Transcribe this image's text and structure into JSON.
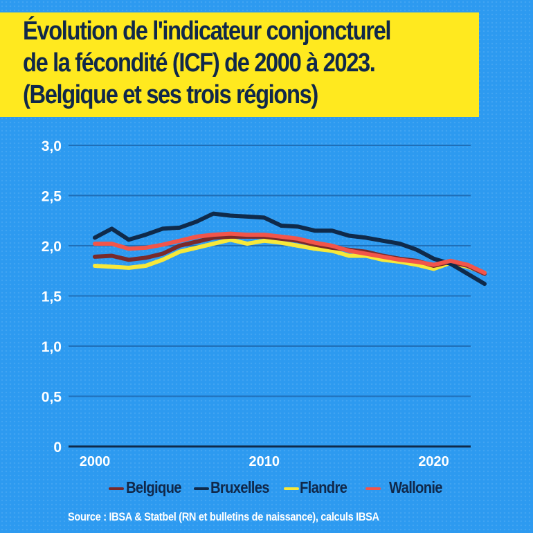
{
  "title": {
    "lines": [
      "Évolution de l'indicateur conjoncturel",
      "de la fécondité (ICF) de 2000 à 2023.",
      "(Belgique et ses trois régions)"
    ],
    "background_color": "#ffe91f",
    "text_color": "#10284a"
  },
  "source": "Source : IBSA & Statbel (RN et bulletins de naissance), calculs IBSA",
  "colors": {
    "background": "#2d9af0",
    "gridline": "#1f6fb8",
    "baseline": "#0f2a4a",
    "tick_text": "#ffffff"
  },
  "chart_data": {
    "type": "line",
    "title": "Évolution de l'indicateur conjoncturel de la fécondité (ICF) de 2000 à 2023. (Belgique et ses trois régions)",
    "xlabel": "",
    "ylabel": "",
    "x": [
      2000,
      2001,
      2002,
      2003,
      2004,
      2005,
      2006,
      2007,
      2008,
      2009,
      2010,
      2011,
      2012,
      2013,
      2014,
      2015,
      2016,
      2017,
      2018,
      2019,
      2020,
      2021,
      2022,
      2023
    ],
    "xlim": [
      2000,
      2023
    ],
    "ylim": [
      0,
      3.0
    ],
    "x_ticks": [
      2000,
      2010,
      2020
    ],
    "x_tick_labels": [
      "2000",
      "2010",
      "2020"
    ],
    "y_ticks": [
      0,
      0.5,
      1.0,
      1.5,
      2.0,
      2.5,
      3.0
    ],
    "y_tick_labels": [
      "0",
      "0,5",
      "1,0",
      "1,5",
      "2,0",
      "2,5",
      "3,0"
    ],
    "grid": "horizontal",
    "legend_position": "bottom",
    "series": [
      {
        "name": "Belgique",
        "color": "#7a2a2a",
        "values": [
          1.89,
          1.9,
          1.86,
          1.88,
          1.92,
          2.0,
          2.04,
          2.08,
          2.09,
          2.09,
          2.09,
          2.07,
          2.05,
          2.01,
          1.98,
          1.96,
          1.94,
          1.9,
          1.87,
          1.85,
          1.8,
          1.84,
          1.8,
          1.72
        ]
      },
      {
        "name": "Bruxelles",
        "color": "#0f2a4a",
        "values": [
          2.08,
          2.17,
          2.06,
          2.11,
          2.17,
          2.18,
          2.24,
          2.32,
          2.3,
          2.29,
          2.28,
          2.2,
          2.19,
          2.15,
          2.15,
          2.1,
          2.08,
          2.05,
          2.02,
          1.96,
          1.87,
          1.82,
          1.72,
          1.62
        ]
      },
      {
        "name": "Flandre",
        "color": "#f7e83a",
        "values": [
          1.8,
          1.79,
          1.78,
          1.8,
          1.86,
          1.94,
          1.98,
          2.02,
          2.06,
          2.02,
          2.05,
          2.03,
          2.0,
          1.97,
          1.95,
          1.9,
          1.9,
          1.86,
          1.84,
          1.81,
          1.77,
          1.83,
          1.79,
          1.73
        ]
      },
      {
        "name": "Wallonie",
        "color": "#f2554a",
        "values": [
          2.02,
          2.02,
          1.97,
          1.98,
          2.01,
          2.05,
          2.09,
          2.11,
          2.12,
          2.11,
          2.11,
          2.09,
          2.07,
          2.03,
          2.0,
          1.95,
          1.92,
          1.89,
          1.86,
          1.84,
          1.81,
          1.85,
          1.81,
          1.73
        ]
      }
    ]
  },
  "legend": {
    "items": [
      {
        "label": "Belgique",
        "color": "#7a2a2a"
      },
      {
        "label": "Bruxelles",
        "color": "#0f2a4a"
      },
      {
        "label": "Flandre",
        "color": "#f7e83a"
      },
      {
        "label": "Wallonie",
        "color": "#f2554a"
      }
    ]
  }
}
